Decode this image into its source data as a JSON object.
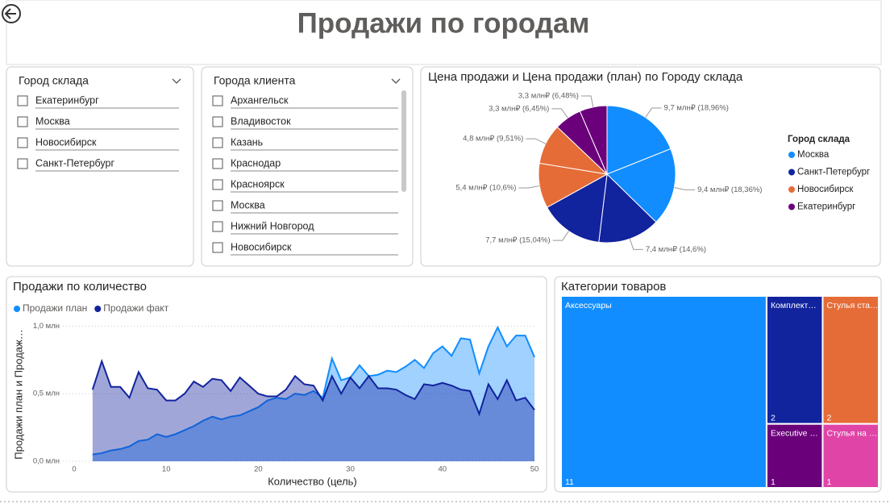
{
  "header": {
    "title": "Продажи по городам"
  },
  "slicers": [
    {
      "title": "Город склада",
      "items": [
        "Екатеринбург",
        "Москва",
        "Новосибирск",
        "Санкт-Петербург"
      ]
    },
    {
      "title": "Города клиента",
      "items": [
        "Архангельск",
        "Владивосток",
        "Казань",
        "Краснодар",
        "Красноярск",
        "Москва",
        "Нижний Новгород",
        "Новосибирск"
      ]
    }
  ],
  "chart_data": [
    {
      "type": "pie",
      "title": "Цена продажи и Цена продажи (план) по Городу склада",
      "legend_title": "Город склада",
      "series": [
        {
          "name": "Москва",
          "color": "#118DFF",
          "values": [
            18.96,
            18.36
          ],
          "value_labels": [
            "9,7 млн₽ (18,96%)",
            "9,4 млн₽ (18,36%)"
          ]
        },
        {
          "name": "Санкт-Петербург",
          "color": "#12239E",
          "values": [
            14.6,
            15.04
          ],
          "value_labels": [
            "7,4 млн₽ (14,6%)",
            "7,7 млн₽ (15,04%)"
          ]
        },
        {
          "name": "Новосибирск",
          "color": "#E66C37",
          "values": [
            10.6,
            9.51
          ],
          "value_labels": [
            "5,4 млн₽ (10,6%)",
            "4,8 млн₽ (9,51%)"
          ]
        },
        {
          "name": "Екатеринбург",
          "color": "#6B007B",
          "values": [
            6.45,
            6.48
          ],
          "value_labels": [
            "3,3 млн₽ (6,45%)",
            "3,3 млн₽ (6,48%)"
          ]
        }
      ]
    },
    {
      "type": "area",
      "title": "Продажи по количество",
      "x_label": "Количество (цель)",
      "y_label": "Продажи план и Продаж…",
      "x": [
        2,
        3,
        4,
        5,
        6,
        7,
        8,
        9,
        10,
        11,
        12,
        13,
        14,
        15,
        16,
        17,
        18,
        19,
        20,
        21,
        22,
        23,
        24,
        25,
        26,
        27,
        28,
        29,
        30,
        31,
        32,
        33,
        34,
        35,
        36,
        37,
        38,
        39,
        40,
        41,
        42,
        43,
        44,
        45,
        46,
        47,
        48,
        49,
        50
      ],
      "series": [
        {
          "name": "Продажи план",
          "color": "#118DFF",
          "values": [
            0.05,
            0.06,
            0.08,
            0.09,
            0.11,
            0.15,
            0.16,
            0.2,
            0.18,
            0.2,
            0.23,
            0.26,
            0.3,
            0.33,
            0.31,
            0.33,
            0.34,
            0.37,
            0.4,
            0.45,
            0.47,
            0.46,
            0.5,
            0.49,
            0.52,
            0.47,
            0.76,
            0.6,
            0.62,
            0.71,
            0.63,
            0.64,
            0.67,
            0.66,
            0.7,
            0.75,
            0.69,
            0.8,
            0.85,
            0.78,
            0.91,
            0.9,
            0.65,
            0.85,
            0.99,
            0.85,
            0.93,
            0.93,
            0.77
          ]
        },
        {
          "name": "Продажи факт",
          "color": "#12239E",
          "values": [
            0.53,
            0.74,
            0.55,
            0.55,
            0.47,
            0.66,
            0.54,
            0.53,
            0.45,
            0.45,
            0.5,
            0.59,
            0.55,
            0.61,
            0.6,
            0.52,
            0.62,
            0.56,
            0.5,
            0.48,
            0.48,
            0.53,
            0.63,
            0.57,
            0.56,
            0.45,
            0.63,
            0.5,
            0.62,
            0.54,
            0.63,
            0.54,
            0.54,
            0.53,
            0.49,
            0.46,
            0.57,
            0.56,
            0.58,
            0.56,
            0.53,
            0.52,
            0.35,
            0.57,
            0.46,
            0.6,
            0.45,
            0.47,
            0.38
          ]
        }
      ],
      "xlim": [
        0,
        50
      ],
      "ylim": [
        0,
        1.05
      ],
      "xticks": [
        0,
        10,
        20,
        30,
        40,
        50
      ],
      "yticks": [
        {
          "value": 0,
          "label": "0,0 млн"
        },
        {
          "value": 0.5,
          "label": "0,5 млн"
        },
        {
          "value": 1,
          "label": "1,0 млн"
        }
      ],
      "grid": true
    },
    {
      "type": "treemap",
      "title": "Категории товаров",
      "categories": [
        "Аксессуары",
        "Комплект…",
        "Стулья ста…",
        "Executive …",
        "Стулья на …"
      ],
      "values": [
        11,
        2,
        2,
        1,
        1
      ],
      "colors": [
        "#118DFF",
        "#12239E",
        "#E66C37",
        "#6B007B",
        "#E044A7"
      ]
    }
  ]
}
